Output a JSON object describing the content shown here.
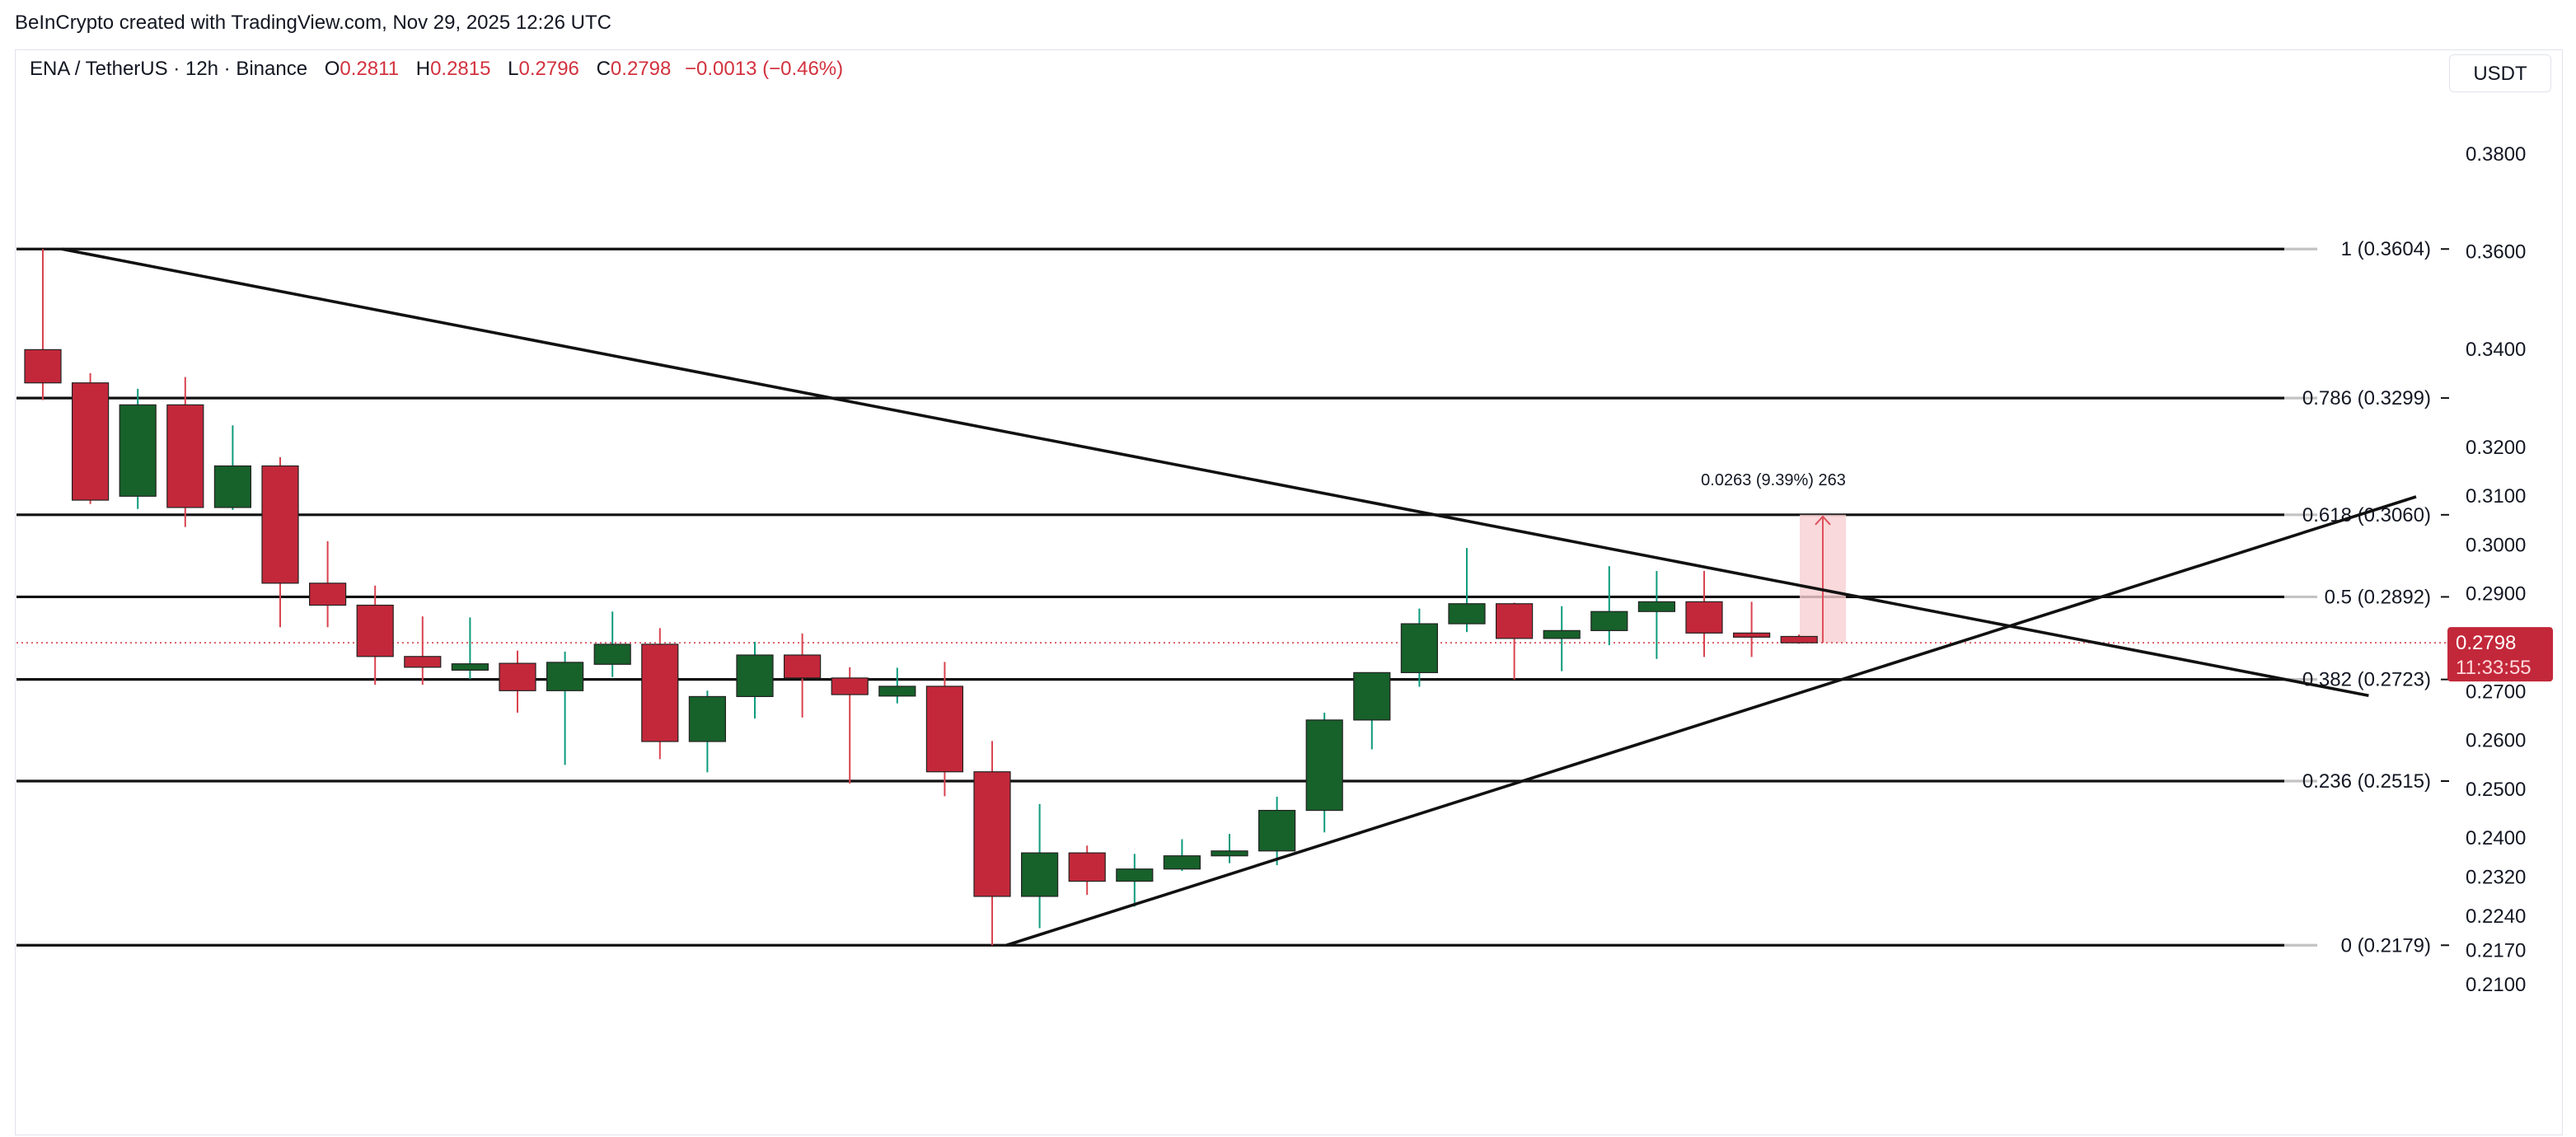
{
  "header": {
    "credit": "BeInCrypto created with TradingView.com, Nov 29, 2025 12:26 UTC"
  },
  "legend": {
    "symbol": "ENA / TetherUS · 12h · Binance",
    "open_label": "O",
    "open": "0.2811",
    "high_label": "H",
    "high": "0.2815",
    "low_label": "L",
    "low": "0.2796",
    "close_label": "C",
    "close": "0.2798",
    "change": "−0.0013 (−0.46%)"
  },
  "currency_button": "USDT",
  "colors": {
    "up": "#17612a",
    "up_wick": "#0e9b7d",
    "down": "#c3283a",
    "down_wick": "#d9434f",
    "line": "#111111",
    "projection": "#f8cfd2"
  },
  "chart_data": {
    "type": "candlestick",
    "timeframe": "12h",
    "ylim": [
      0.21,
      0.39
    ],
    "y_ticks": [
      "0.3800",
      "0.3600",
      "0.3400",
      "0.3200",
      "0.3100",
      "0.3000",
      "0.2900",
      "0.2700",
      "0.2600",
      "0.2500",
      "0.2400",
      "0.2320",
      "0.2240",
      "0.2170",
      "0.2100"
    ],
    "candles": [
      {
        "o": 0.3398,
        "h": 0.3604,
        "l": 0.3295,
        "c": 0.333
      },
      {
        "o": 0.333,
        "h": 0.335,
        "l": 0.3082,
        "c": 0.309
      },
      {
        "o": 0.3098,
        "h": 0.3318,
        "l": 0.3072,
        "c": 0.3285
      },
      {
        "o": 0.3285,
        "h": 0.3342,
        "l": 0.3035,
        "c": 0.3075
      },
      {
        "o": 0.3075,
        "h": 0.3243,
        "l": 0.307,
        "c": 0.316
      },
      {
        "o": 0.316,
        "h": 0.3178,
        "l": 0.283,
        "c": 0.292
      },
      {
        "o": 0.292,
        "h": 0.3006,
        "l": 0.283,
        "c": 0.2875
      },
      {
        "o": 0.2875,
        "h": 0.2915,
        "l": 0.2712,
        "c": 0.277
      },
      {
        "o": 0.277,
        "h": 0.2852,
        "l": 0.2712,
        "c": 0.2748
      },
      {
        "o": 0.2742,
        "h": 0.285,
        "l": 0.2724,
        "c": 0.2755
      },
      {
        "o": 0.2756,
        "h": 0.2782,
        "l": 0.2655,
        "c": 0.27
      },
      {
        "o": 0.27,
        "h": 0.278,
        "l": 0.2548,
        "c": 0.2758
      },
      {
        "o": 0.2754,
        "h": 0.2862,
        "l": 0.2728,
        "c": 0.2795
      },
      {
        "o": 0.2795,
        "h": 0.2828,
        "l": 0.256,
        "c": 0.2596
      },
      {
        "o": 0.2596,
        "h": 0.27,
        "l": 0.2533,
        "c": 0.2688
      },
      {
        "o": 0.2688,
        "h": 0.28,
        "l": 0.2643,
        "c": 0.2773
      },
      {
        "o": 0.2773,
        "h": 0.2817,
        "l": 0.2645,
        "c": 0.2726
      },
      {
        "o": 0.2726,
        "h": 0.2748,
        "l": 0.251,
        "c": 0.2692
      },
      {
        "o": 0.2689,
        "h": 0.2747,
        "l": 0.2674,
        "c": 0.2709
      },
      {
        "o": 0.2709,
        "h": 0.2759,
        "l": 0.2484,
        "c": 0.2534
      },
      {
        "o": 0.2534,
        "h": 0.2597,
        "l": 0.2179,
        "c": 0.2279
      },
      {
        "o": 0.2279,
        "h": 0.2468,
        "l": 0.2214,
        "c": 0.2368
      },
      {
        "o": 0.2368,
        "h": 0.2383,
        "l": 0.2282,
        "c": 0.231
      },
      {
        "o": 0.231,
        "h": 0.2366,
        "l": 0.2258,
        "c": 0.2335
      },
      {
        "o": 0.2335,
        "h": 0.2396,
        "l": 0.2331,
        "c": 0.2362
      },
      {
        "o": 0.2362,
        "h": 0.2407,
        "l": 0.2347,
        "c": 0.2372
      },
      {
        "o": 0.2372,
        "h": 0.2483,
        "l": 0.2343,
        "c": 0.2455
      },
      {
        "o": 0.2455,
        "h": 0.2655,
        "l": 0.241,
        "c": 0.264
      },
      {
        "o": 0.264,
        "h": 0.2735,
        "l": 0.258,
        "c": 0.2737
      },
      {
        "o": 0.2737,
        "h": 0.2868,
        "l": 0.2708,
        "c": 0.2837
      },
      {
        "o": 0.2837,
        "h": 0.2992,
        "l": 0.282,
        "c": 0.2878
      },
      {
        "o": 0.2878,
        "h": 0.288,
        "l": 0.2723,
        "c": 0.2807
      },
      {
        "o": 0.2807,
        "h": 0.2873,
        "l": 0.274,
        "c": 0.2823
      },
      {
        "o": 0.2823,
        "h": 0.2955,
        "l": 0.2793,
        "c": 0.2862
      },
      {
        "o": 0.2862,
        "h": 0.2945,
        "l": 0.2765,
        "c": 0.2882
      },
      {
        "o": 0.2882,
        "h": 0.2945,
        "l": 0.2769,
        "c": 0.2818
      },
      {
        "o": 0.2818,
        "h": 0.2882,
        "l": 0.2769,
        "c": 0.2811
      },
      {
        "o": 0.2811,
        "h": 0.2815,
        "l": 0.2796,
        "c": 0.2798
      }
    ],
    "fib_levels": [
      {
        "ratio": "1",
        "value": 0.3604,
        "label": "1 (0.3604)"
      },
      {
        "ratio": "0.786",
        "value": 0.3299,
        "label": "0.786 (0.3299)"
      },
      {
        "ratio": "0.618",
        "value": 0.306,
        "label": "0.618 (0.3060)"
      },
      {
        "ratio": "0.5",
        "value": 0.2892,
        "label": "0.5 (0.2892)"
      },
      {
        "ratio": "0.382",
        "value": 0.2723,
        "label": "0.382 (0.2723)"
      },
      {
        "ratio": "0.236",
        "value": 0.2515,
        "label": "0.236 (0.2515)"
      },
      {
        "ratio": "0",
        "value": 0.2179,
        "label": "0 (0.2179)"
      }
    ],
    "trendlines": [
      {
        "name": "descending",
        "start": {
          "bar": 0.4,
          "price": 0.3604
        },
        "end": {
          "bar": 49.0,
          "price": 0.269
        }
      },
      {
        "name": "ascending",
        "start": {
          "bar": 20.3,
          "price": 0.2179
        },
        "end": {
          "bar": 50.0,
          "price": 0.3097
        }
      }
    ],
    "price_range_measure": {
      "bar": 37.5,
      "from": 0.2798,
      "to": 0.306,
      "label": "0.0263 (9.39%) 263"
    },
    "last_price": {
      "value": 0.2798,
      "label": "0.2798",
      "countdown": "11:33:55"
    }
  }
}
